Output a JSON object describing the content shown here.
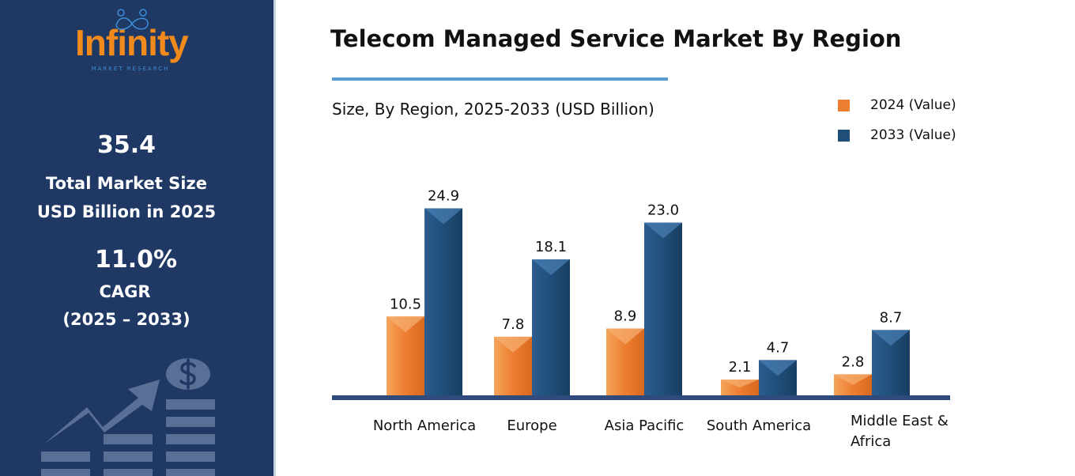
{
  "sidebar": {
    "logo": {
      "name": "Infinity",
      "tagline": "MARKET RESEARCH"
    },
    "market_size_value": "35.4",
    "market_size_label1": "Total Market Size",
    "market_size_label2": "USD Billion in 2025",
    "cagr_value": "11.0%",
    "cagr_label": "CAGR",
    "cagr_period": "(2025 – 2033)"
  },
  "chart_data": {
    "type": "bar",
    "title": "Telecom Managed Service Market By Region",
    "subtitle": "Size, By Region, 2025-2033 (USD Billion)",
    "categories": [
      "North America",
      "Europe",
      "Asia Pacific",
      "South America",
      "Middle East & Africa"
    ],
    "series": [
      {
        "name": "2024 (Value)",
        "color": "#ed7d31",
        "values": [
          10.5,
          7.8,
          8.9,
          2.1,
          2.8
        ]
      },
      {
        "name": "2033 (Value)",
        "color": "#1f4e79",
        "values": [
          24.9,
          18.1,
          23.0,
          4.7,
          8.7
        ]
      }
    ],
    "legend_position": "top-right",
    "grid": false
  }
}
